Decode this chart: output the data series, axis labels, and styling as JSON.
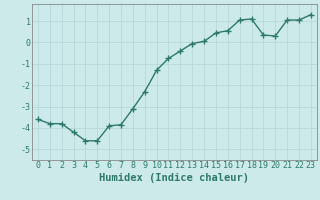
{
  "x": [
    0,
    1,
    2,
    3,
    4,
    5,
    6,
    7,
    8,
    9,
    10,
    11,
    12,
    13,
    14,
    15,
    16,
    17,
    18,
    19,
    20,
    21,
    22,
    23
  ],
  "y": [
    -3.6,
    -3.8,
    -3.8,
    -4.2,
    -4.6,
    -4.6,
    -3.9,
    -3.85,
    -3.1,
    -2.3,
    -1.3,
    -0.75,
    -0.4,
    -0.05,
    0.05,
    0.45,
    0.55,
    1.05,
    1.1,
    0.35,
    0.3,
    1.05,
    1.05,
    1.3
  ],
  "line_color": "#2d7a6a",
  "marker": "+",
  "marker_size": 4,
  "marker_lw": 1.0,
  "bg_color": "#cceaea",
  "grid_color": "#b8d8d8",
  "xlabel": "Humidex (Indice chaleur)",
  "xlabel_fontsize": 7.5,
  "yticks": [
    -5,
    -4,
    -3,
    -2,
    -1,
    0,
    1
  ],
  "xticks": [
    0,
    1,
    2,
    3,
    4,
    5,
    6,
    7,
    8,
    9,
    10,
    11,
    12,
    13,
    14,
    15,
    16,
    17,
    18,
    19,
    20,
    21,
    22,
    23
  ],
  "ylim": [
    -5.5,
    1.8
  ],
  "xlim": [
    -0.5,
    23.5
  ],
  "font_color": "#2d7a6a",
  "tick_fontsize": 6.0,
  "linewidth": 1.0,
  "linestyle": "-"
}
